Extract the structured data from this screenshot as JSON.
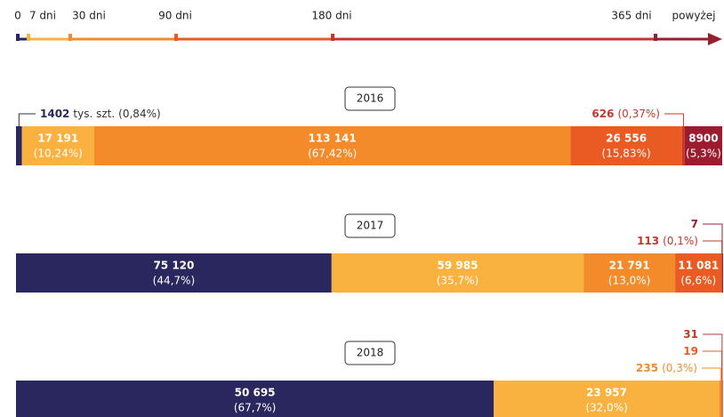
{
  "chart_data": {
    "type": "stacked_bar_horizontal",
    "timeline": [
      "0",
      "7 dni",
      "30 dni",
      "90 dni",
      "180 dni",
      "365 dni",
      "powyżej"
    ],
    "categories": [
      "2016",
      "2017",
      "2018"
    ],
    "unit_label": "tys. szt.",
    "series": [
      {
        "color": "#2a275e",
        "values": [
          1402,
          75120,
          50695
        ],
        "value_labels": [
          "1402",
          "75 120",
          "50 695"
        ],
        "percents": [
          0.84,
          44.7,
          67.7
        ],
        "percent_labels": [
          "(0,84%)",
          "(44,7%)",
          "(67,7%)"
        ]
      },
      {
        "color": "#f9b13f",
        "values": [
          17191,
          59985,
          23957
        ],
        "value_labels": [
          "17 191",
          "59 985",
          "23 957"
        ],
        "percents": [
          10.24,
          35.7,
          32.0
        ],
        "percent_labels": [
          "(10,24%)",
          "(35,7%)",
          "(32,0%)"
        ]
      },
      {
        "color": "#f38b2b",
        "values": [
          113141,
          21791,
          235
        ],
        "value_labels": [
          "113 141",
          "21 791",
          "235"
        ],
        "percents": [
          67.42,
          13.0,
          0.3
        ],
        "percent_labels": [
          "(67,42%)",
          "(13,0%)",
          "(0,3%)"
        ]
      },
      {
        "color": "#ea5b24",
        "values": [
          26556,
          11081,
          19
        ],
        "value_labels": [
          "26 556",
          "11 081",
          "19"
        ],
        "percents": [
          15.83,
          6.6,
          null
        ],
        "percent_labels": [
          "(15,83%)",
          "(6,6%)",
          null
        ]
      },
      {
        "color": "#c5372c",
        "values": [
          626,
          113,
          31
        ],
        "value_labels": [
          "626",
          "113",
          "31"
        ],
        "percents": [
          0.37,
          0.1,
          null
        ],
        "percent_labels": [
          "(0,37%)",
          "(0,1%)",
          null
        ]
      },
      {
        "color": "#9b1c2e",
        "values": [
          8900,
          7,
          null
        ],
        "value_labels": [
          "8900",
          "7",
          null
        ],
        "percents": [
          5.3,
          null,
          null
        ],
        "percent_labels": [
          "(5,3%)",
          null,
          null
        ]
      }
    ]
  }
}
